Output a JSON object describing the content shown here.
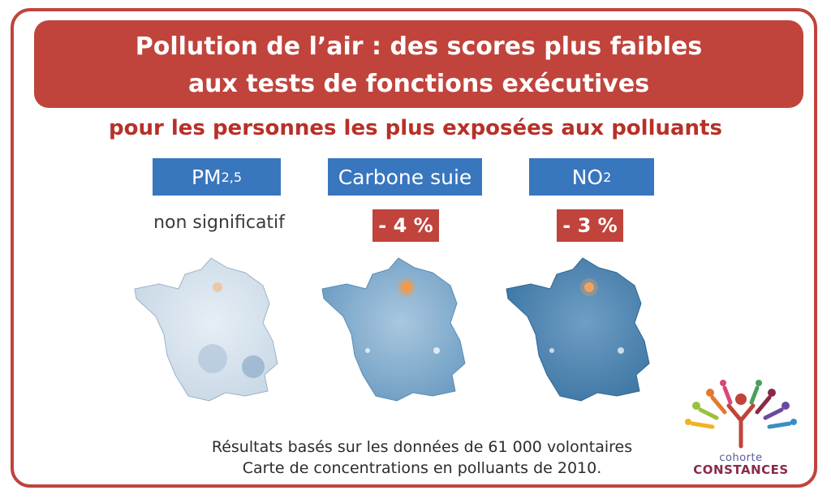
{
  "title": {
    "line1": "Pollution de l’air : des scores plus faibles",
    "line2": "aux tests de fonctions exécutives"
  },
  "subtitle": "pour les personnes les plus exposées aux polluants",
  "pollutants": [
    {
      "name": "PM",
      "sub": "2,5",
      "result": "non significatif",
      "map_colors": [
        "#c9d8e6",
        "#e6eef5",
        "#eec6a4"
      ]
    },
    {
      "name": "Carbone suie",
      "sub": "",
      "result": "- 4 %",
      "map_colors": [
        "#6d9dc3",
        "#a9c7df",
        "#f09a4c"
      ]
    },
    {
      "name": "NO",
      "sub": "2",
      "result": "- 3 %",
      "map_colors": [
        "#3f77a5",
        "#6f9ec4",
        "#f2a35a"
      ]
    }
  ],
  "footer": {
    "line1": "Résultats basés sur les données de 61 000 volontaires",
    "line2": "Carte de concentrations en polluants de 2010."
  },
  "logo": {
    "small": "cohorte",
    "big": "CONSTANCES"
  },
  "colors": {
    "accent_red": "#c0443c",
    "label_blue": "#3876be"
  }
}
